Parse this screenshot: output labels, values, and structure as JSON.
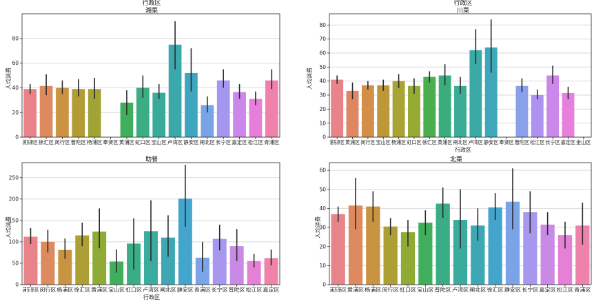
{
  "chart_data": [
    {
      "type": "bar",
      "title": "湘菜",
      "top_label": "行政区",
      "xlabel": "",
      "ylabel": "人均消费",
      "ylim": [
        0,
        100
      ],
      "yticks": [
        0,
        20,
        40,
        60,
        80
      ],
      "categories": [
        "浦东新区",
        "徐汇区",
        "闵行区",
        "普陀区",
        "杨浦区",
        "奉贤区",
        "黄浦区",
        "虹口区",
        "宝山区",
        "卢湾区",
        "静安区",
        "闸北区",
        "长宁区",
        "嘉定区",
        "松江区",
        "青浦区"
      ],
      "values": [
        39,
        41.5,
        40,
        39,
        39,
        0,
        28,
        40,
        36,
        75,
        52,
        26,
        46,
        36.5,
        31,
        46
      ],
      "err_low": [
        35,
        34,
        35,
        33,
        31,
        0,
        18,
        32,
        31,
        55,
        37,
        20,
        40,
        31,
        26,
        39
      ],
      "err_high": [
        43,
        51,
        46,
        47,
        48,
        0,
        38,
        50,
        43,
        94,
        72,
        33,
        55,
        43,
        37,
        55
      ],
      "colors": [
        "#e8838a",
        "#dd8a5f",
        "#cc9343",
        "#b39b36",
        "#a1a434",
        "#8eab35",
        "#3fae5d",
        "#3aad83",
        "#3aab9a",
        "#3ba9ab",
        "#3fa6c0",
        "#78a4e6",
        "#a596ef",
        "#cc87ea",
        "#e67fd9",
        "#ee82ac"
      ]
    },
    {
      "type": "bar",
      "title": "川菜",
      "top_label": "行政区",
      "xlabel": "行政区",
      "ylabel": "人均消费",
      "ylim": [
        0,
        88
      ],
      "yticks": [
        0,
        10,
        20,
        30,
        40,
        50,
        60,
        70,
        80
      ],
      "categories": [
        "浦东新区",
        "黄浦区",
        "闵行区",
        "宝山区",
        "杨浦区",
        "虹口区",
        "徐汇区",
        "黄浦区",
        "闸北区",
        "卢湾区",
        "静安区",
        "奉贤区",
        "普陀区",
        "松江区",
        "长宁区",
        "嘉定区",
        "金山区"
      ],
      "values": [
        41,
        33,
        37,
        37,
        40,
        36.5,
        43,
        44,
        36.5,
        62,
        64,
        0,
        36.5,
        30,
        44,
        31.5,
        0
      ],
      "err_low": [
        38,
        27,
        34,
        33,
        35,
        31,
        39,
        37,
        31,
        52,
        46,
        0,
        32,
        27,
        38,
        27,
        0
      ],
      "err_high": [
        44,
        39,
        40,
        41,
        45,
        42,
        47,
        52,
        43,
        77,
        84,
        0,
        42,
        34,
        51,
        36,
        0
      ],
      "colors": [
        "#e8838a",
        "#df8765",
        "#d38f48",
        "#bd9838",
        "#a9a234",
        "#95ab34",
        "#4aae4f",
        "#3aad7d",
        "#3aab95",
        "#3ba9a6",
        "#3ea7b9",
        "#4aa3d2",
        "#8aa0ea",
        "#ad93ef",
        "#cc87ea",
        "#e680dc",
        "#ee82b4"
      ]
    },
    {
      "type": "bar",
      "title": "助餐",
      "top_label": "",
      "xlabel": "行政区",
      "xlabel_below": "",
      "ylabel": "人均消费",
      "ylim": [
        0,
        285
      ],
      "yticks": [
        0,
        50,
        100,
        150,
        200,
        250
      ],
      "categories": [
        "浦东新区",
        "闵行区",
        "杨浦区",
        "徐汇区",
        "黄浦区",
        "宝山区",
        "虹口区",
        "卢湾区",
        "闸北区",
        "静安区",
        "青浦区",
        "长宁区",
        "普陀区",
        "松江区",
        "嘉定区"
      ],
      "values": [
        112,
        100,
        81,
        115,
        124,
        54,
        96,
        125,
        110,
        201,
        63,
        107,
        90,
        55,
        62
      ],
      "err_low": [
        95,
        75,
        60,
        90,
        85,
        28,
        35,
        55,
        65,
        135,
        30,
        80,
        55,
        40,
        45
      ],
      "err_high": [
        132,
        128,
        108,
        145,
        178,
        82,
        155,
        197,
        162,
        280,
        100,
        140,
        130,
        72,
        82
      ],
      "colors": [
        "#e8838a",
        "#dc8a5e",
        "#c99440",
        "#ad9f34",
        "#8fab35",
        "#3fae5d",
        "#3aad86",
        "#3aab9f",
        "#3da8b3",
        "#44a5cc",
        "#7aa3e8",
        "#a897ef",
        "#c98ae6",
        "#e480d6",
        "#ee82ab"
      ]
    },
    {
      "type": "bar",
      "title": "北菜",
      "top_label": "",
      "xlabel": "",
      "xlabel_below": "",
      "ylabel": "人均消费",
      "ylim": [
        0,
        64
      ],
      "yticks": [
        0,
        10,
        20,
        30,
        40,
        50,
        60
      ],
      "categories": [
        "浦东新区",
        "黄浦区",
        "杨浦区",
        "闵行区",
        "虹口区",
        "宝山区",
        "普陀区",
        "卢湾区",
        "闸北区",
        "徐汇区",
        "静安区",
        "长宁区",
        "嘉定区",
        "松江区",
        "青浦区"
      ],
      "values": [
        37,
        41.5,
        41,
        30.5,
        27.5,
        32.5,
        42.5,
        34,
        31,
        40.5,
        43.5,
        38,
        31.5,
        26,
        31
      ],
      "err_low": [
        33,
        29,
        33,
        26,
        20,
        26,
        35,
        19,
        23,
        34,
        29,
        27,
        26,
        19,
        21
      ],
      "err_high": [
        41,
        56,
        49,
        35,
        34,
        39,
        51,
        50,
        40,
        48,
        61,
        49,
        38,
        33,
        43
      ],
      "colors": [
        "#e8838a",
        "#dc8a5e",
        "#c99440",
        "#ad9f34",
        "#8fab35",
        "#3fae5d",
        "#3aad86",
        "#3aab9f",
        "#3da8b3",
        "#44a5cc",
        "#7aa3e8",
        "#a897ef",
        "#c98ae6",
        "#e480d6",
        "#ee82ab"
      ]
    }
  ]
}
